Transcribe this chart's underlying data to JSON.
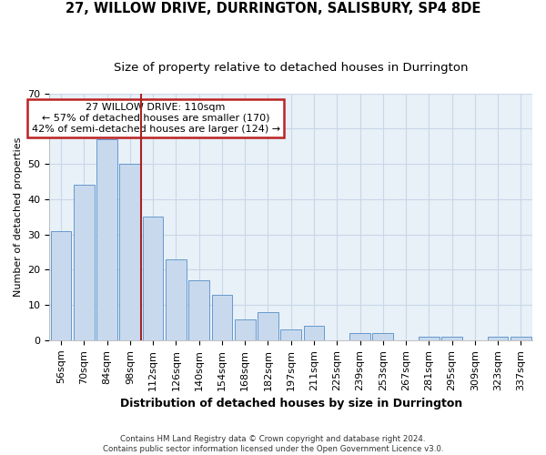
{
  "title": "27, WILLOW DRIVE, DURRINGTON, SALISBURY, SP4 8DE",
  "subtitle": "Size of property relative to detached houses in Durrington",
  "xlabel": "Distribution of detached houses by size in Durrington",
  "ylabel": "Number of detached properties",
  "categories": [
    "56sqm",
    "70sqm",
    "84sqm",
    "98sqm",
    "112sqm",
    "126sqm",
    "140sqm",
    "154sqm",
    "168sqm",
    "182sqm",
    "197sqm",
    "211sqm",
    "225sqm",
    "239sqm",
    "253sqm",
    "267sqm",
    "281sqm",
    "295sqm",
    "309sqm",
    "323sqm",
    "337sqm"
  ],
  "values": [
    31,
    44,
    57,
    50,
    35,
    23,
    17,
    13,
    6,
    8,
    3,
    4,
    0,
    2,
    2,
    0,
    1,
    1,
    0,
    1,
    1
  ],
  "bar_color": "#c8d9ee",
  "bar_edge_color": "#6699cc",
  "vline_color": "#aa2222",
  "annotation_text": "27 WILLOW DRIVE: 110sqm\n← 57% of detached houses are smaller (170)\n42% of semi-detached houses are larger (124) →",
  "annotation_box_color": "#ffffff",
  "annotation_box_edge_color": "#bb2222",
  "grid_color": "#c8d8e8",
  "background_color": "#e8f0f8",
  "ylim": [
    0,
    70
  ],
  "yticks": [
    0,
    10,
    20,
    30,
    40,
    50,
    60,
    70
  ],
  "footnote": "Contains HM Land Registry data © Crown copyright and database right 2024.\nContains public sector information licensed under the Open Government Licence v3.0.",
  "title_fontsize": 10.5,
  "subtitle_fontsize": 9.5,
  "tick_fontsize": 8,
  "xlabel_fontsize": 9,
  "ylabel_fontsize": 8
}
